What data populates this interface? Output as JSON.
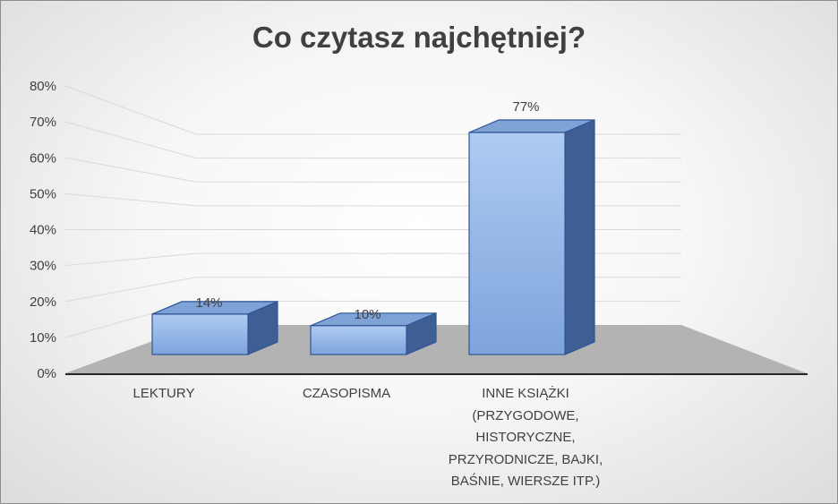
{
  "chart_data": {
    "type": "bar",
    "title": "Co czytasz najchętniej?",
    "categories": [
      "LEKTURY",
      "CZASOPISMA",
      "INNE KSIĄŻKI\n(PRZYGODOWE,\nHISTORYCZNE,\nPRZYRODNICZE, BAJKI,\nBAŚNIE, WIERSZE ITP.)"
    ],
    "values": [
      14,
      10,
      77
    ],
    "data_labels": [
      "14%",
      "10%",
      "77%"
    ],
    "y_ticks": [
      "0%",
      "10%",
      "20%",
      "30%",
      "40%",
      "50%",
      "60%",
      "70%",
      "80%"
    ],
    "ylim": [
      0,
      80
    ],
    "grid": true,
    "legend": "none",
    "colors": {
      "bar_front": "#8eb4e3",
      "bar_light": "#a9c8f0",
      "bar_side": "#3f5f94",
      "bar_top": "#7fa3d6",
      "bar_edge": "#2f5597",
      "floor": "#b3b3b3"
    }
  }
}
